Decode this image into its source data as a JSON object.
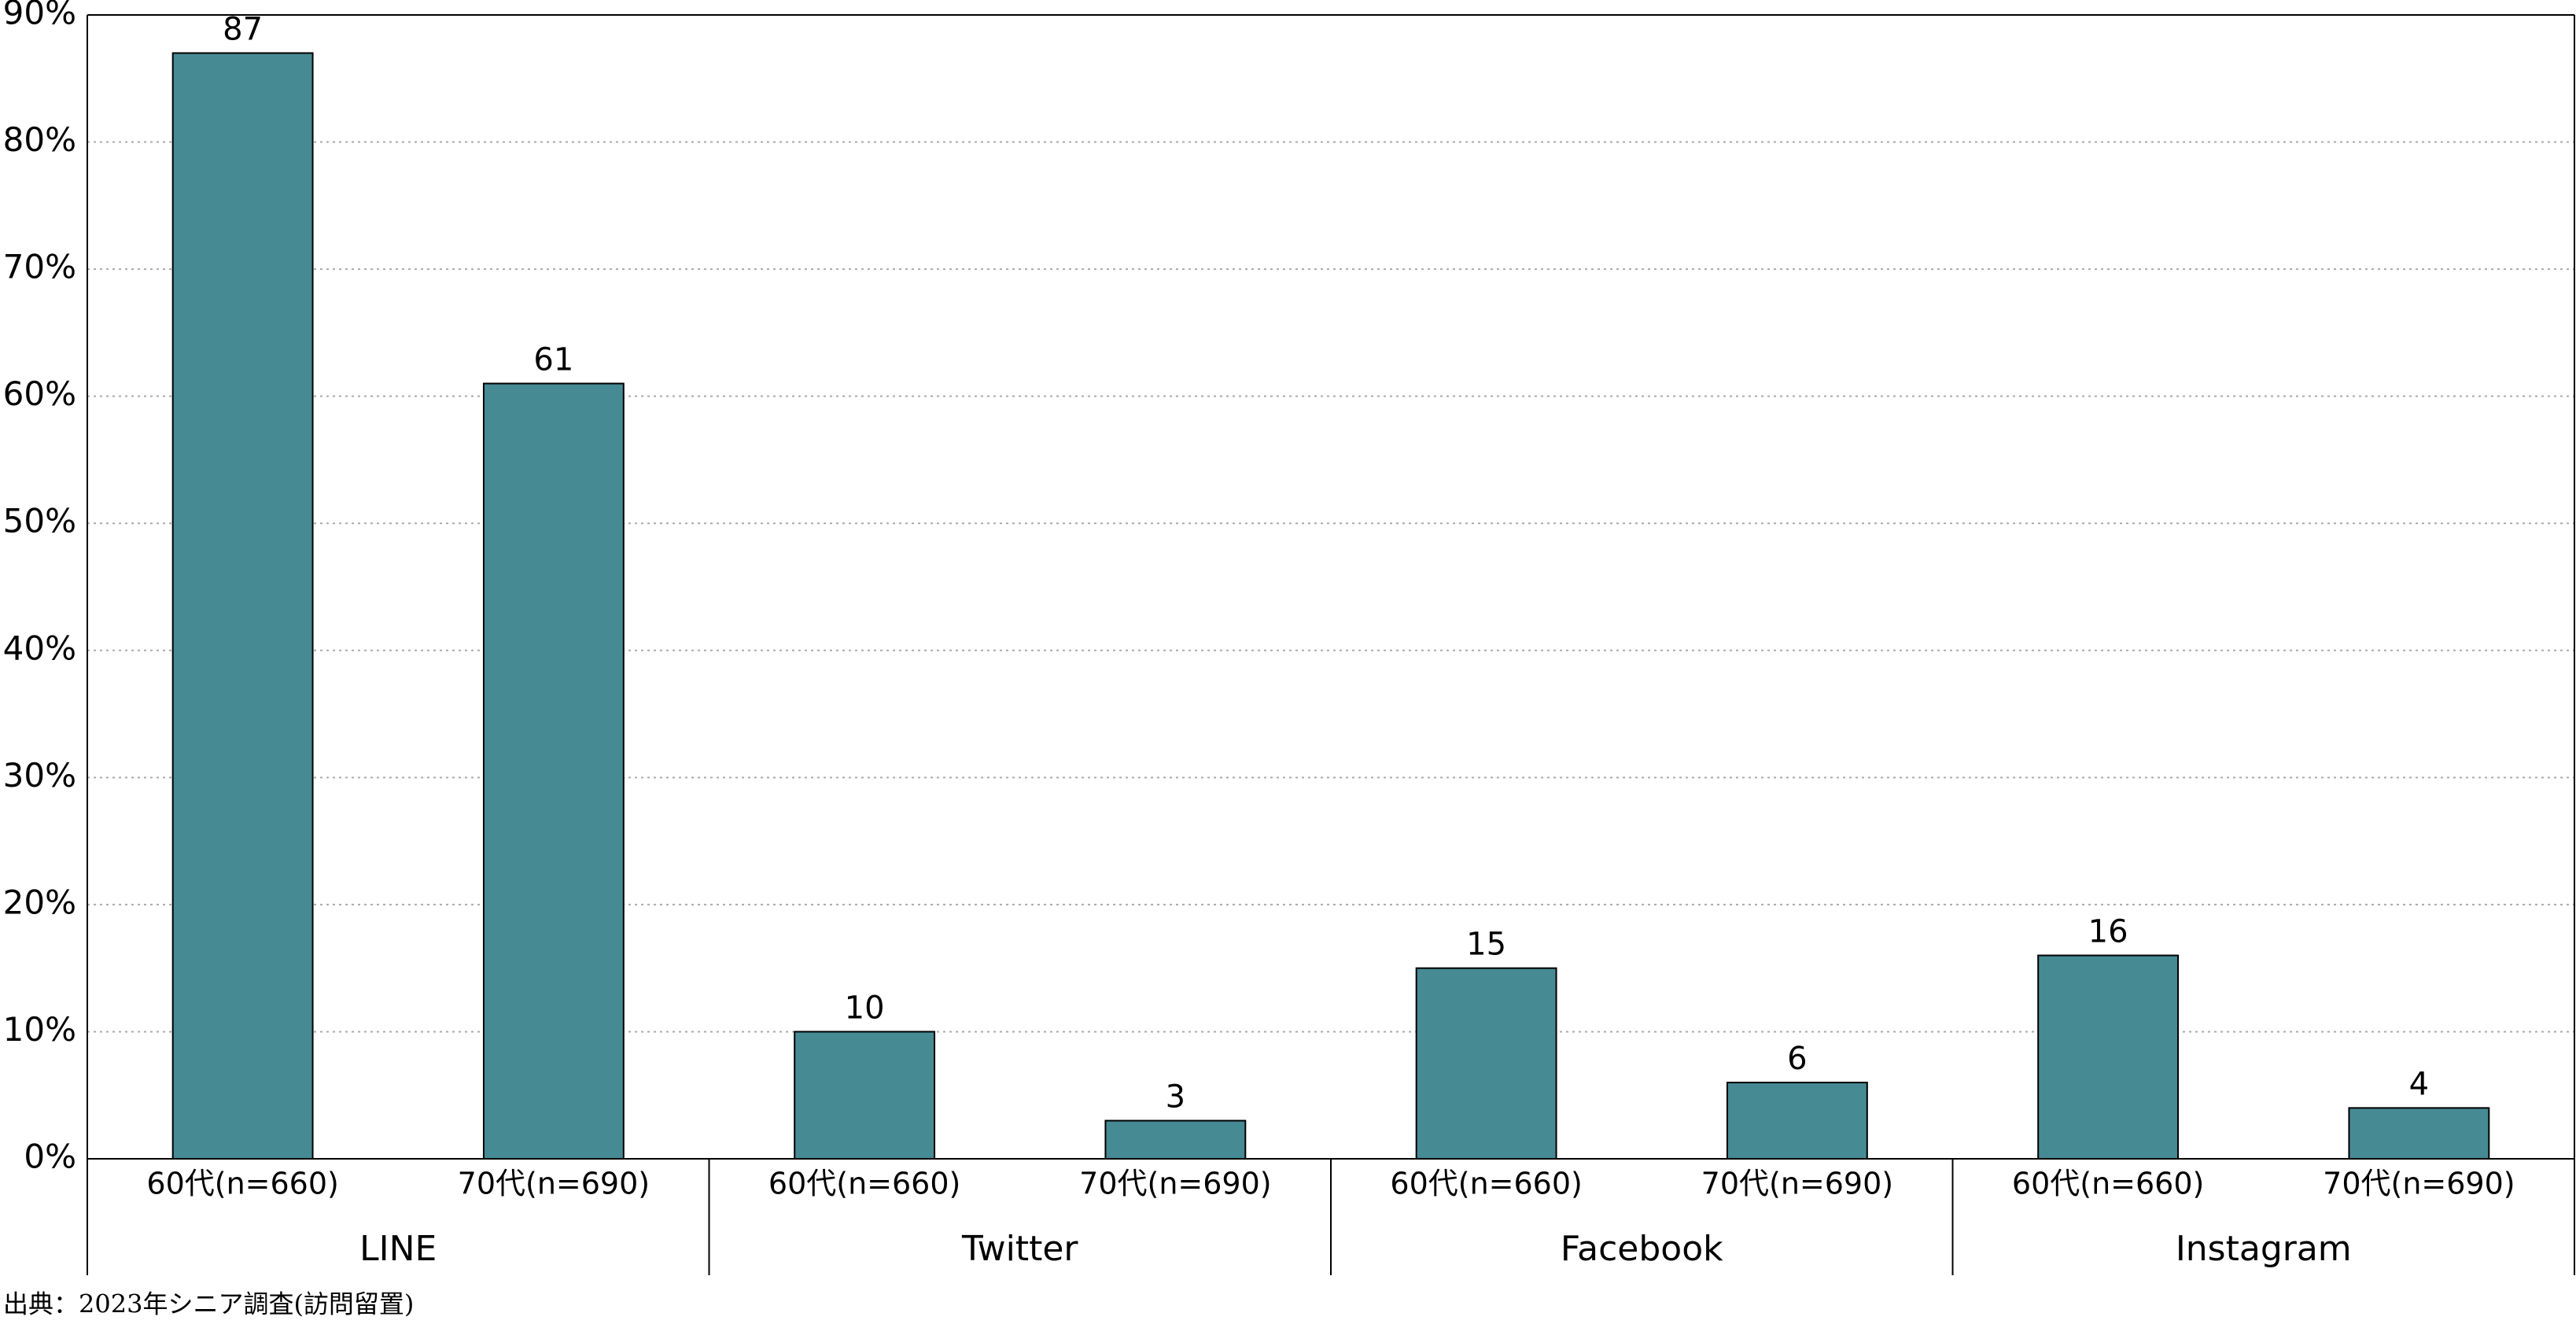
{
  "chart_data": {
    "type": "bar",
    "groups": [
      "LINE",
      "Twitter",
      "Facebook",
      "Instagram"
    ],
    "categories": [
      "60代(n=660)",
      "70代(n=690)",
      "60代(n=660)",
      "70代(n=690)",
      "60代(n=660)",
      "70代(n=690)",
      "60代(n=660)",
      "70代(n=690)"
    ],
    "values": [
      87,
      61,
      10,
      3,
      15,
      6,
      16,
      4
    ],
    "color": "#468a94",
    "ylim": [
      0,
      90
    ],
    "yticks": [
      {
        "value": 0,
        "label": "0%"
      },
      {
        "value": 10,
        "label": "10%"
      },
      {
        "value": 20,
        "label": "20%"
      },
      {
        "value": 30,
        "label": "30%"
      },
      {
        "value": 40,
        "label": "40%"
      },
      {
        "value": 50,
        "label": "50%"
      },
      {
        "value": 60,
        "label": "60%"
      },
      {
        "value": 70,
        "label": "70%"
      },
      {
        "value": 80,
        "label": "80%"
      },
      {
        "value": 90,
        "label": "90%"
      }
    ],
    "grid": true,
    "source": "出典：2023年シニア調査(訪問留置)"
  }
}
